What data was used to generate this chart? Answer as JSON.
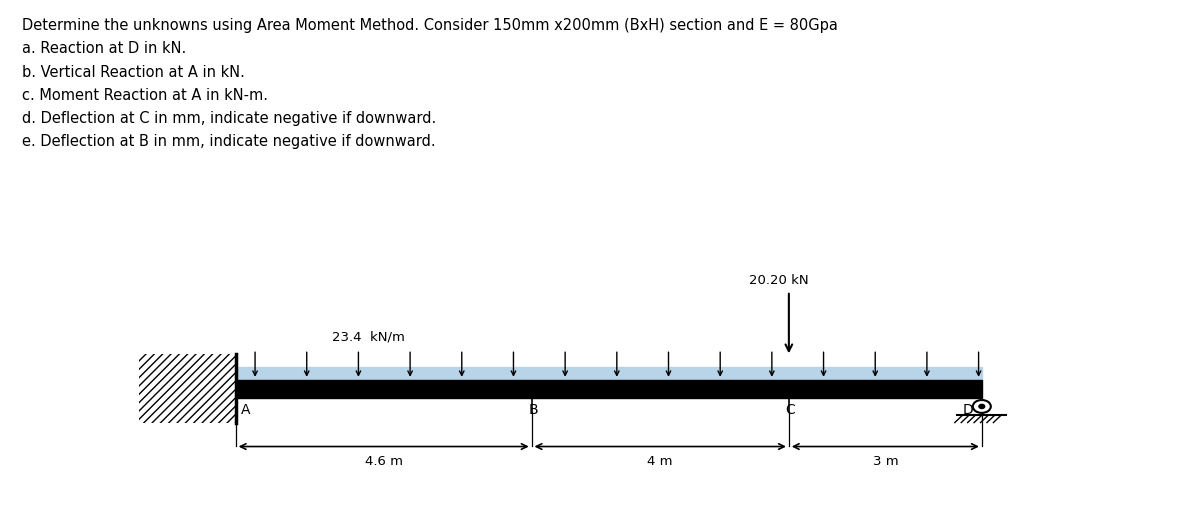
{
  "title_text": "Determine the unknowns using Area Moment Method. Consider 150mm x200mm (BxH) section and E = 80Gpa",
  "questions": [
    "a. Reaction at D in kN.",
    "b. Vertical Reaction at A in kN.",
    "c. Moment Reaction at A in kN-m.",
    "d. Deflection at C in mm, indicate negative if downward.",
    "e. Deflection at B in mm, indicate negative if downward."
  ],
  "point_load_label": "20.20 kN",
  "distributed_load_label": "23.4  kN/m",
  "span_labels": [
    "4.6 m",
    "4 m",
    "3 m"
  ],
  "point_labels": [
    "A",
    "B",
    "C",
    "D"
  ],
  "beam_color": "#000000",
  "dist_load_top_color": "#b8d4e8",
  "background_color": "#ffffff",
  "figsize": [
    12.0,
    5.05
  ],
  "dpi": 100,
  "span_AB": 4.6,
  "span_BC": 4.0,
  "span_CD": 3.0
}
